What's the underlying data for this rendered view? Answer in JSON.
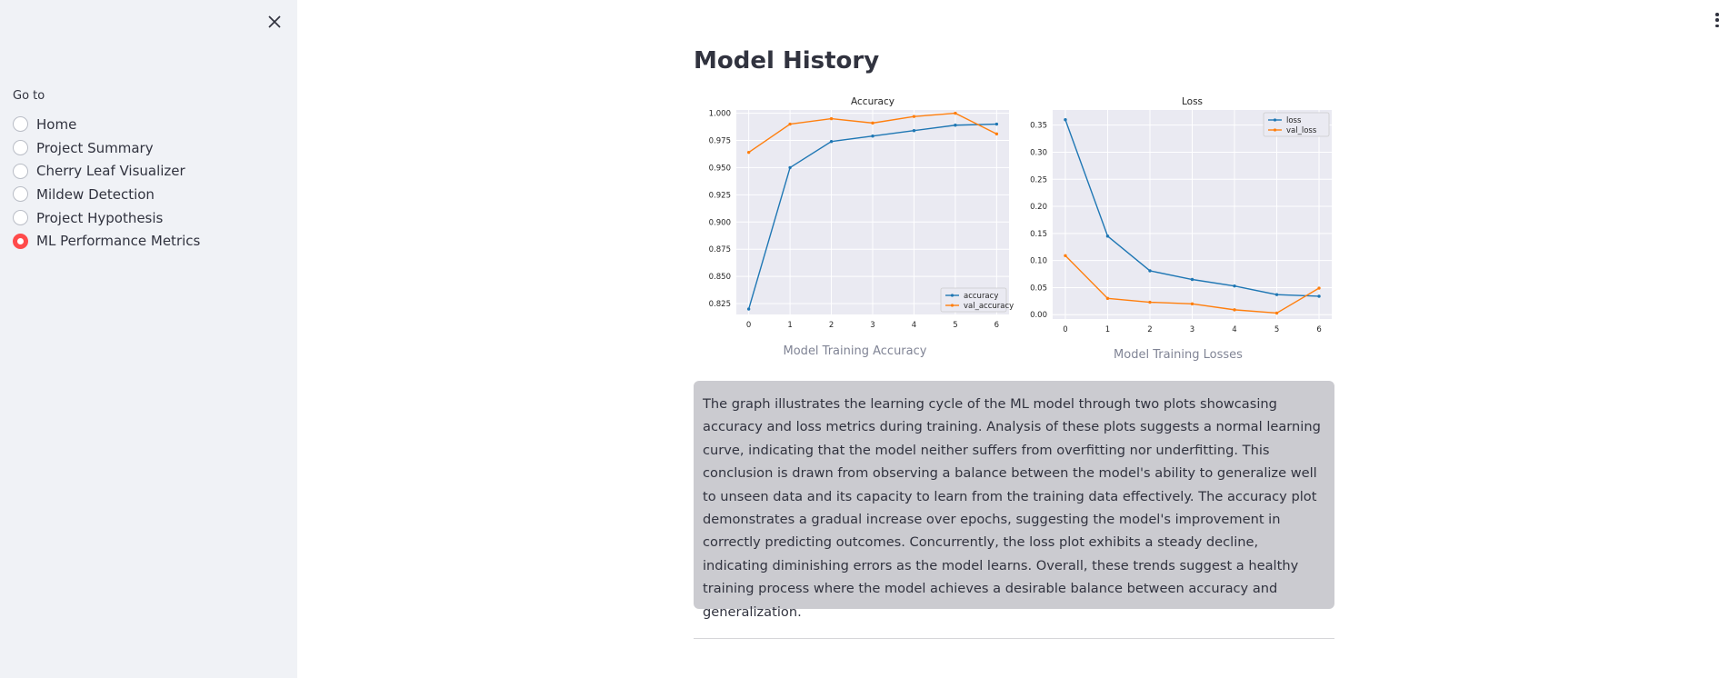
{
  "sidebar": {
    "nav_title": "Go to",
    "items": [
      {
        "label": "Home",
        "selected": false
      },
      {
        "label": "Project Summary",
        "selected": false
      },
      {
        "label": "Cherry Leaf Visualizer",
        "selected": false
      },
      {
        "label": "Mildew Detection",
        "selected": false
      },
      {
        "label": "Project Hypothesis",
        "selected": false
      },
      {
        "label": "ML Performance Metrics",
        "selected": true
      }
    ],
    "close_icon": "close-icon",
    "accent_color": "#ff4b4b"
  },
  "header": {
    "menu_icon": "vertical-ellipsis-icon"
  },
  "main": {
    "title": "Model History",
    "accuracy_caption": "Model Training Accuracy",
    "loss_caption": "Model Training Losses",
    "description": "The graph illustrates the learning cycle of the ML model through two plots showcasing accuracy and loss metrics during training. Analysis of these plots suggests a normal learning curve, indicating that the model neither suffers from overfitting nor underfitting. This conclusion is drawn from observing a balance between the model's ability to generalize well to unseen data and its capacity to learn from the training data effectively. The accuracy plot demonstrates a gradual increase over epochs, suggesting the model's improvement in correctly predicting outcomes. Concurrently, the loss plot exhibits a steady decline, indicating diminishing errors as the model learns. Overall, these trends suggest a healthy training process where the model achieves a desirable balance between accuracy and generalization."
  },
  "chart_data": [
    {
      "type": "line",
      "title": "Accuracy",
      "xlabel": "",
      "ylabel": "",
      "x": [
        0,
        1,
        2,
        3,
        4,
        5,
        6
      ],
      "xticks": [
        "0",
        "1",
        "2",
        "3",
        "4",
        "5",
        "6"
      ],
      "yticks": [
        "0.825",
        "0.850",
        "0.875",
        "0.900",
        "0.925",
        "0.950",
        "0.975",
        "1.000"
      ],
      "ylim": [
        0.815,
        1.003
      ],
      "xlim": [
        -0.3,
        6.3
      ],
      "grid": true,
      "legend_position": "lower-right",
      "series": [
        {
          "name": "accuracy",
          "color": "#1f77b4",
          "values": [
            0.82,
            0.95,
            0.974,
            0.979,
            0.984,
            0.989,
            0.99
          ]
        },
        {
          "name": "val_accuracy",
          "color": "#ff7f0e",
          "values": [
            0.964,
            0.99,
            0.995,
            0.991,
            0.997,
            1.0,
            0.981
          ]
        }
      ]
    },
    {
      "type": "line",
      "title": "Loss",
      "xlabel": "",
      "ylabel": "",
      "x": [
        0,
        1,
        2,
        3,
        4,
        5,
        6
      ],
      "xticks": [
        "0",
        "1",
        "2",
        "3",
        "4",
        "5",
        "6"
      ],
      "yticks": [
        "0.00",
        "0.05",
        "0.10",
        "0.15",
        "0.20",
        "0.25",
        "0.30",
        "0.35"
      ],
      "ylim": [
        -0.008,
        0.378
      ],
      "xlim": [
        -0.3,
        6.3
      ],
      "grid": true,
      "legend_position": "upper-right",
      "series": [
        {
          "name": "loss",
          "color": "#1f77b4",
          "values": [
            0.36,
            0.145,
            0.081,
            0.065,
            0.053,
            0.037,
            0.034
          ]
        },
        {
          "name": "val_loss",
          "color": "#ff7f0e",
          "values": [
            0.109,
            0.03,
            0.023,
            0.02,
            0.009,
            0.003,
            0.049
          ]
        }
      ]
    }
  ]
}
